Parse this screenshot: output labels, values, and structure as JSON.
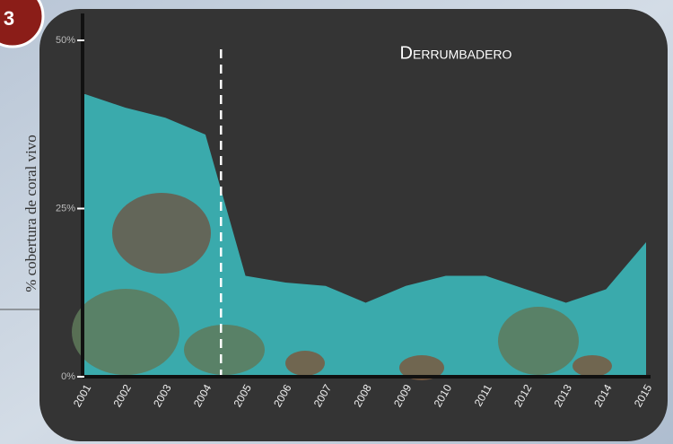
{
  "chart_data": {
    "type": "area",
    "badge": "3",
    "title": "Derrumbadero",
    "ylabel": "% cobertura de coral vivo",
    "categories": [
      "2001",
      "2002",
      "2003",
      "2004",
      "2005",
      "2006",
      "2007",
      "2008",
      "2009",
      "2010",
      "2011",
      "2012",
      "2013",
      "2014",
      "2015"
    ],
    "values": [
      42,
      40,
      38.5,
      36,
      15,
      14,
      13.5,
      11,
      13.5,
      15,
      15,
      13,
      11,
      13,
      20
    ],
    "color": "#3aaaac",
    "ylim": [
      0,
      54
    ],
    "yticks": [
      {
        "value": 0,
        "label": "0%"
      },
      {
        "value": 25,
        "label": "25%"
      },
      {
        "value": 50,
        "label": "50%"
      }
    ]
  }
}
